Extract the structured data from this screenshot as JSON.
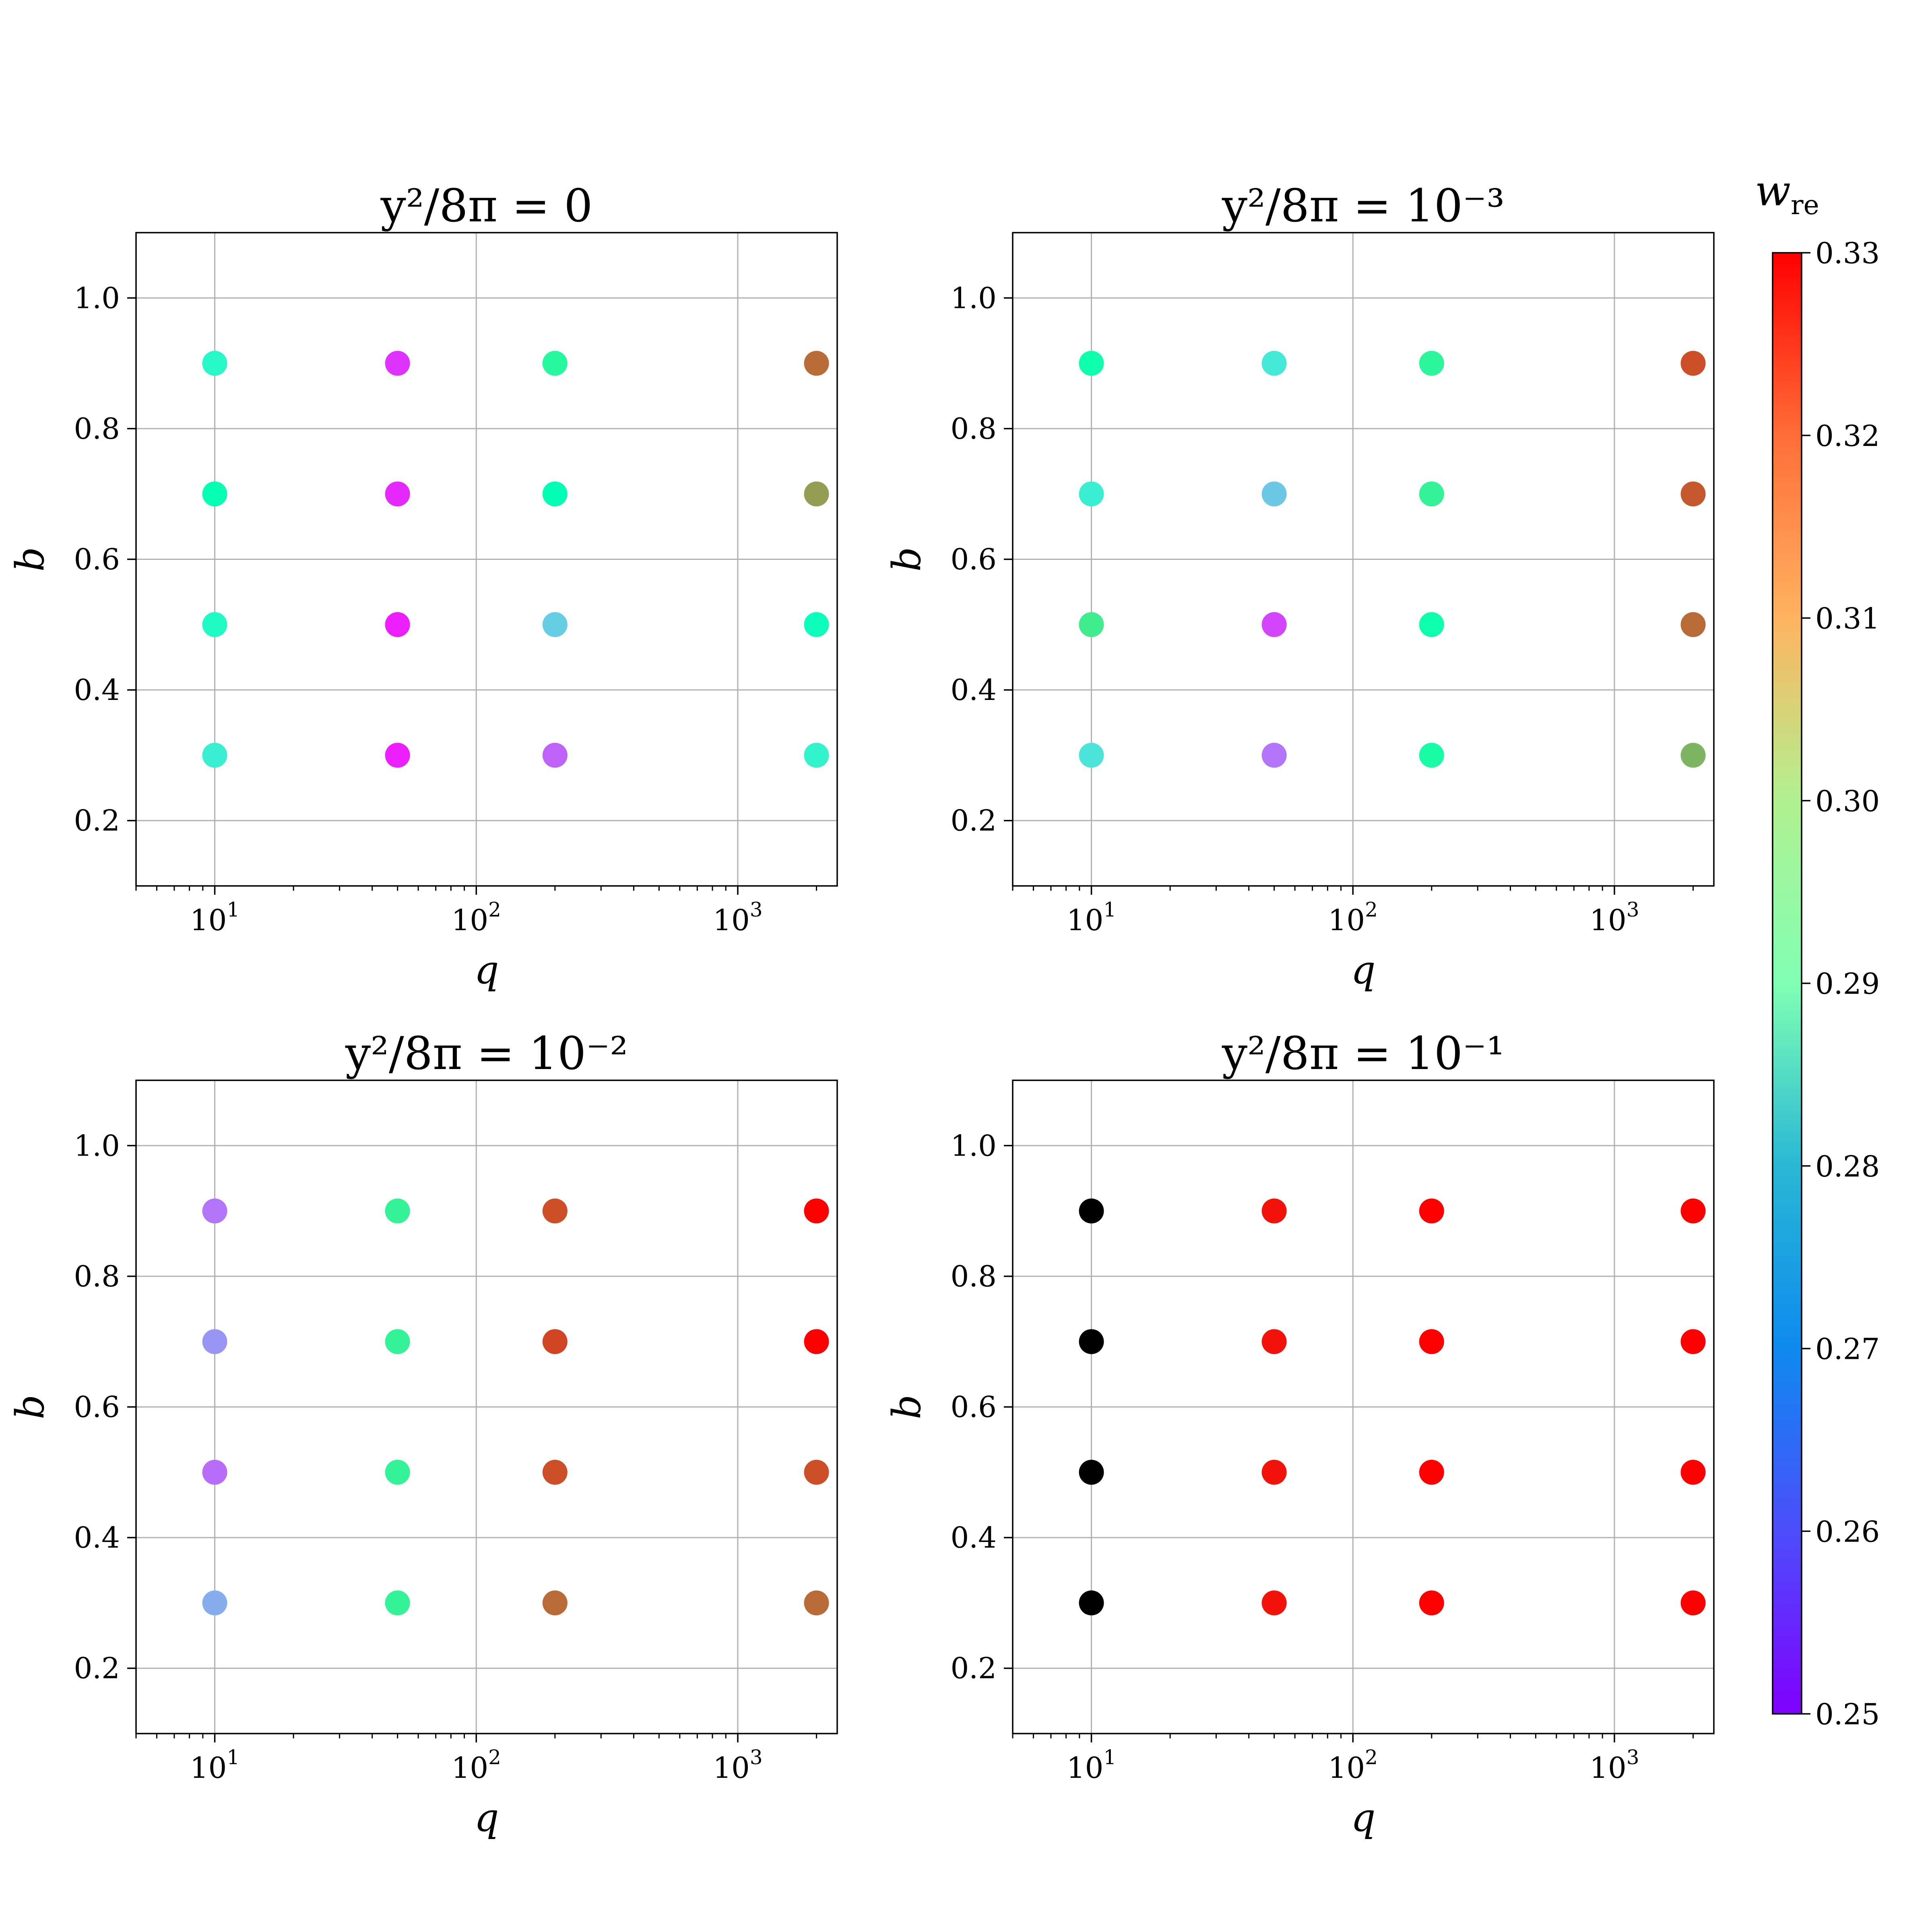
{
  "chart_data": [
    {
      "type": "scatter",
      "title": "y²/8π = 0",
      "xlabel": "q",
      "ylabel": "b",
      "xscale": "log",
      "xlim": [
        5,
        2400
      ],
      "ylim": [
        0.1,
        1.1
      ],
      "grid": true,
      "xticks": [
        10,
        100,
        1000
      ],
      "xtick_labels": [
        "10",
        "10",
        "10"
      ],
      "xtick_exponents": [
        "1",
        "2",
        "3"
      ],
      "yticks": [
        0.2,
        0.4,
        0.6,
        0.8,
        1.0
      ],
      "ytick_labels": [
        "0.2",
        "0.4",
        "0.6",
        "0.8",
        "1.0"
      ],
      "points": [
        {
          "q": 10,
          "b": 0.9,
          "w_re": 0.284
        },
        {
          "q": 10,
          "b": 0.7,
          "w_re": 0.291
        },
        {
          "q": 10,
          "b": 0.5,
          "w_re": 0.285
        },
        {
          "q": 10,
          "b": 0.3,
          "w_re": 0.281
        },
        {
          "q": 50,
          "b": 0.9,
          "w_re": 0.255
        },
        {
          "q": 50,
          "b": 0.7,
          "w_re": 0.254
        },
        {
          "q": 50,
          "b": 0.5,
          "w_re": 0.253
        },
        {
          "q": 50,
          "b": 0.3,
          "w_re": 0.253
        },
        {
          "q": 200,
          "b": 0.9,
          "w_re": 0.296
        },
        {
          "q": 200,
          "b": 0.7,
          "w_re": 0.29
        },
        {
          "q": 200,
          "b": 0.5,
          "w_re": 0.274
        },
        {
          "q": 200,
          "b": 0.3,
          "w_re": 0.26
        },
        {
          "q": 2000,
          "b": 0.9,
          "w_re": 0.319
        },
        {
          "q": 2000,
          "b": 0.7,
          "w_re": 0.313
        },
        {
          "q": 2000,
          "b": 0.5,
          "w_re": 0.288
        },
        {
          "q": 2000,
          "b": 0.3,
          "w_re": 0.282
        }
      ]
    },
    {
      "type": "scatter",
      "title": "y²/8π = 10⁻³",
      "xlabel": "q",
      "ylabel": "b",
      "xscale": "log",
      "xlim": [
        5,
        2400
      ],
      "ylim": [
        0.1,
        1.1
      ],
      "grid": true,
      "xticks": [
        10,
        100,
        1000
      ],
      "xtick_labels": [
        "10",
        "10",
        "10"
      ],
      "xtick_exponents": [
        "1",
        "2",
        "3"
      ],
      "yticks": [
        0.2,
        0.4,
        0.6,
        0.8,
        1.0
      ],
      "ytick_labels": [
        "0.2",
        "0.4",
        "0.6",
        "0.8",
        "1.0"
      ],
      "points": [
        {
          "q": 10,
          "b": 0.9,
          "w_re": 0.292
        },
        {
          "q": 10,
          "b": 0.7,
          "w_re": 0.281
        },
        {
          "q": 10,
          "b": 0.5,
          "w_re": 0.3
        },
        {
          "q": 10,
          "b": 0.3,
          "w_re": 0.278
        },
        {
          "q": 50,
          "b": 0.9,
          "w_re": 0.279
        },
        {
          "q": 50,
          "b": 0.7,
          "w_re": 0.273
        },
        {
          "q": 50,
          "b": 0.5,
          "w_re": 0.257
        },
        {
          "q": 50,
          "b": 0.3,
          "w_re": 0.262
        },
        {
          "q": 200,
          "b": 0.9,
          "w_re": 0.297
        },
        {
          "q": 200,
          "b": 0.7,
          "w_re": 0.298
        },
        {
          "q": 200,
          "b": 0.5,
          "w_re": 0.292
        },
        {
          "q": 200,
          "b": 0.3,
          "w_re": 0.294
        },
        {
          "q": 2000,
          "b": 0.9,
          "w_re": 0.322
        },
        {
          "q": 2000,
          "b": 0.7,
          "w_re": 0.321
        },
        {
          "q": 2000,
          "b": 0.5,
          "w_re": 0.319
        },
        {
          "q": 2000,
          "b": 0.3,
          "w_re": 0.31
        }
      ]
    },
    {
      "type": "scatter",
      "title": "y²/8π = 10⁻²",
      "xlabel": "q",
      "ylabel": "b",
      "xscale": "log",
      "xlim": [
        5,
        2400
      ],
      "ylim": [
        0.1,
        1.1
      ],
      "grid": true,
      "xticks": [
        10,
        100,
        1000
      ],
      "xtick_labels": [
        "10",
        "10",
        "10"
      ],
      "xtick_exponents": [
        "1",
        "2",
        "3"
      ],
      "yticks": [
        0.2,
        0.4,
        0.6,
        0.8,
        1.0
      ],
      "ytick_labels": [
        "0.2",
        "0.4",
        "0.6",
        "0.8",
        "1.0"
      ],
      "points": [
        {
          "q": 10,
          "b": 0.9,
          "w_re": 0.262
        },
        {
          "q": 10,
          "b": 0.7,
          "w_re": 0.266
        },
        {
          "q": 10,
          "b": 0.5,
          "w_re": 0.261
        },
        {
          "q": 10,
          "b": 0.3,
          "w_re": 0.269
        },
        {
          "q": 50,
          "b": 0.9,
          "w_re": 0.298
        },
        {
          "q": 50,
          "b": 0.7,
          "w_re": 0.298
        },
        {
          "q": 50,
          "b": 0.5,
          "w_re": 0.298
        },
        {
          "q": 50,
          "b": 0.3,
          "w_re": 0.298
        },
        {
          "q": 200,
          "b": 0.9,
          "w_re": 0.322
        },
        {
          "q": 200,
          "b": 0.7,
          "w_re": 0.323
        },
        {
          "q": 200,
          "b": 0.5,
          "w_re": 0.322
        },
        {
          "q": 200,
          "b": 0.3,
          "w_re": 0.319
        },
        {
          "q": 2000,
          "b": 0.9,
          "w_re": 0.33
        },
        {
          "q": 2000,
          "b": 0.7,
          "w_re": 0.33
        },
        {
          "q": 2000,
          "b": 0.5,
          "w_re": 0.322
        },
        {
          "q": 2000,
          "b": 0.3,
          "w_re": 0.319
        }
      ]
    },
    {
      "type": "scatter",
      "title": "y²/8π = 10⁻¹",
      "xlabel": "q",
      "ylabel": "b",
      "xscale": "log",
      "xlim": [
        5,
        2400
      ],
      "ylim": [
        0.1,
        1.1
      ],
      "grid": true,
      "xticks": [
        10,
        100,
        1000
      ],
      "xtick_labels": [
        "10",
        "10",
        "10"
      ],
      "xtick_exponents": [
        "1",
        "2",
        "3"
      ],
      "yticks": [
        0.2,
        0.4,
        0.6,
        0.8,
        1.0
      ],
      "ytick_labels": [
        "0.2",
        "0.4",
        "0.6",
        "0.8",
        "1.0"
      ],
      "points": [
        {
          "q": 10,
          "b": 0.9,
          "w_re": null
        },
        {
          "q": 10,
          "b": 0.7,
          "w_re": null
        },
        {
          "q": 10,
          "b": 0.5,
          "w_re": null
        },
        {
          "q": 10,
          "b": 0.3,
          "w_re": null
        },
        {
          "q": 50,
          "b": 0.9,
          "w_re": 0.328
        },
        {
          "q": 50,
          "b": 0.7,
          "w_re": 0.328
        },
        {
          "q": 50,
          "b": 0.5,
          "w_re": 0.328
        },
        {
          "q": 50,
          "b": 0.3,
          "w_re": 0.328
        },
        {
          "q": 200,
          "b": 0.9,
          "w_re": 0.33
        },
        {
          "q": 200,
          "b": 0.7,
          "w_re": 0.33
        },
        {
          "q": 200,
          "b": 0.5,
          "w_re": 0.33
        },
        {
          "q": 200,
          "b": 0.3,
          "w_re": 0.33
        },
        {
          "q": 2000,
          "b": 0.9,
          "w_re": 0.33
        },
        {
          "q": 2000,
          "b": 0.7,
          "w_re": 0.33
        },
        {
          "q": 2000,
          "b": 0.5,
          "w_re": 0.33
        },
        {
          "q": 2000,
          "b": 0.3,
          "w_re": 0.33
        }
      ]
    }
  ],
  "colorbar": {
    "label": "w_re",
    "colormap": "rainbow",
    "range": [
      0.25,
      0.33
    ],
    "ticks": [
      0.25,
      0.26,
      0.27,
      0.28,
      0.29,
      0.3,
      0.31,
      0.32,
      0.33
    ],
    "tick_labels": [
      "0.25",
      "0.26",
      "0.27",
      "0.28",
      "0.29",
      "0.30",
      "0.31",
      "0.32",
      "0.33"
    ],
    "out_of_range_color": "#000000"
  }
}
